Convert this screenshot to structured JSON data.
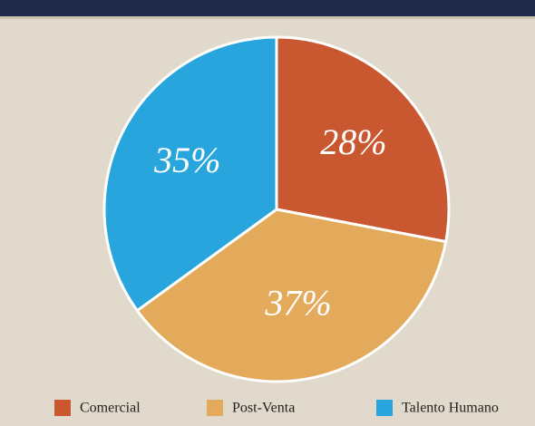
{
  "chart_data": {
    "type": "pie",
    "categories": [
      "Comercial",
      "Post-Venta",
      "Talento Humano"
    ],
    "values": [
      28,
      37,
      35
    ],
    "value_labels": [
      "28%",
      "37%",
      "35%"
    ],
    "colors": [
      "#c9572f",
      "#e2aa5a",
      "#27a5dc"
    ],
    "start_angle": 0,
    "direction": "clockwise"
  }
}
